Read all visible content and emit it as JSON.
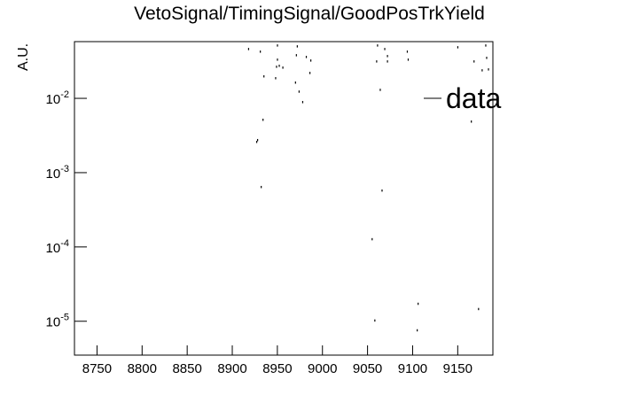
{
  "chart_data": {
    "type": "scatter",
    "title": "VetoSignal/TimingSignal/GoodPosTrkYield",
    "y_label": "A.U.",
    "log_y": true,
    "xlim": [
      8725,
      9189
    ],
    "ylim": [
      3.5e-06,
      0.058
    ],
    "xticks": [
      8750,
      8800,
      8850,
      8900,
      8950,
      9000,
      9050,
      9100,
      9150
    ],
    "yticks": [
      {
        "value": 1e-05,
        "label": "10^-5"
      },
      {
        "value": 0.0001,
        "label": "10^-4"
      },
      {
        "value": 0.001,
        "label": "10^-3"
      },
      {
        "value": 0.01,
        "label": "10^-2"
      }
    ],
    "legend_position": "upper right",
    "series": [
      {
        "name": "data",
        "color": "#000000",
        "x": [
          8918,
          8931,
          8935,
          8948,
          8950,
          8949,
          8952,
          8956,
          8950,
          8934,
          8928,
          8927,
          8932,
          8972,
          8971,
          8982,
          8987,
          8986,
          8974,
          8970,
          8978,
          9061,
          9069,
          9072,
          9060,
          9064,
          9094,
          9095,
          9072,
          9150,
          9168,
          9181,
          9182,
          9184,
          9177,
          9165,
          9066,
          9055,
          9058,
          9106,
          9105,
          9173
        ],
        "values": [
          0.0464,
          0.0428,
          0.0199,
          0.0188,
          0.0334,
          0.0268,
          0.0276,
          0.0261,
          0.0518,
          0.00518,
          0.00276,
          0.00261,
          0.000645,
          0.0504,
          0.0383,
          0.0363,
          0.0325,
          0.0221,
          0.0124,
          0.0164,
          0.00896,
          0.0518,
          0.0464,
          0.0373,
          0.0316,
          0.0131,
          0.0428,
          0.0334,
          0.0316,
          0.049,
          0.0316,
          0.0518,
          0.0353,
          0.0247,
          0.024,
          0.0049,
          0.000578,
          0.000128,
          1.03e-05,
          1.73e-05,
          7.6e-06,
          1.47e-05
        ]
      }
    ]
  }
}
